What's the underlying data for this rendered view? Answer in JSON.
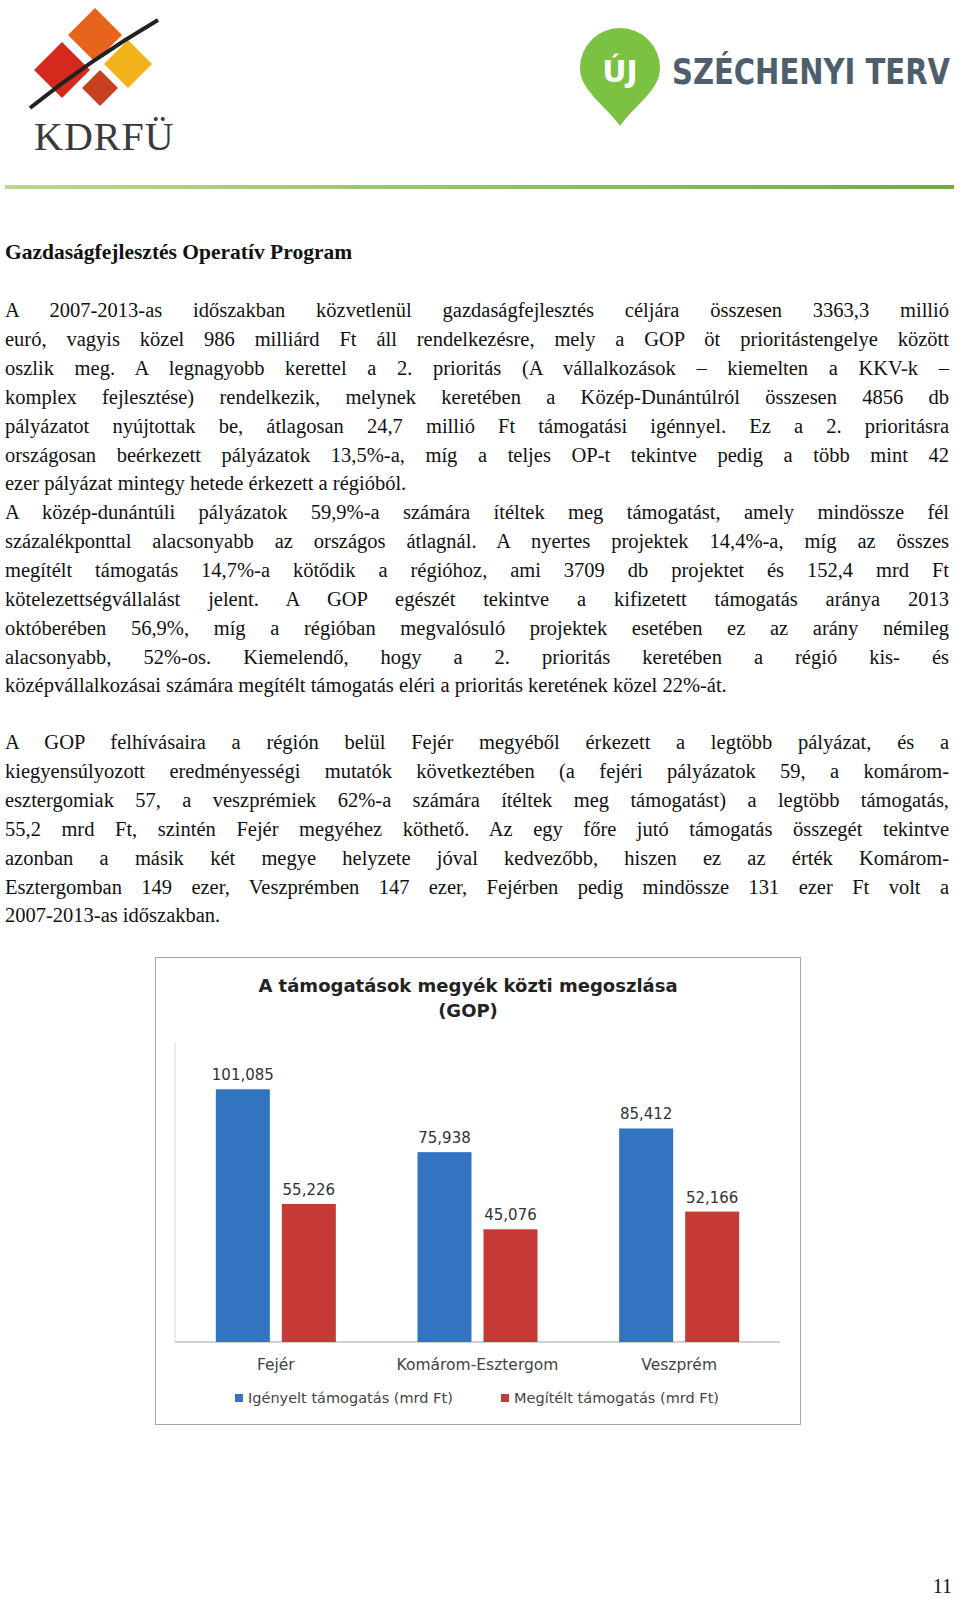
{
  "header": {
    "left_logo": "KDRFÜ",
    "right_logo": {
      "mark": "ÚJ",
      "text": "SZÉCHENYI TERV"
    }
  },
  "title": "Gazdaságfejlesztés Operatív Program",
  "paragraphs": [
    [
      "A 2007-2013-as időszakban közvetlenül gazdaságfejlesztés céljára összesen 3363,3 millió",
      "euró, vagyis közel 986 milliárd Ft áll rendelkezésre, mely a GOP öt prioritástengelye között",
      "oszlik meg. A legnagyobb kerettel a 2. prioritás (A vállalkozások – kiemelten a KKV-k –",
      "komplex fejlesztése) rendelkezik, melynek keretében a Közép-Dunántúlról összesen 4856 db",
      "pályázatot nyújtottak be, átlagosan 24,7 millió Ft támogatási igénnyel. Ez a 2. prioritásra",
      "országosan beérkezett pályázatok 13,5%-a, míg a teljes OP-t tekintve pedig a több mint 42",
      "ezer pályázat mintegy hetede érkezett a régióból."
    ],
    [
      "A közép-dunántúli pályázatok 59,9%-a számára ítéltek meg támogatást, amely mindössze fél",
      "százalékponttal alacsonyabb az országos átlagnál. A nyertes projektek 14,4%-a, míg az összes",
      "megítélt támogatás 14,7%-a kötődik a régióhoz, ami 3709 db projektet és 152,4 mrd Ft",
      "kötelezettségvállalást jelent. A GOP egészét tekintve a kifizetett támogatás aránya 2013",
      "októberében 56,9%, míg a régióban megvalósuló projektek esetében ez az arány némileg",
      "alacsonyabb, 52%-os. Kiemelendő, hogy a 2. prioritás keretében a régió kis- és",
      "középvállalkozásai számára megítélt támogatás eléri a prioritás keretének közel 22%-át."
    ],
    [
      "A GOP felhívásaira a régión belül Fejér megyéből érkezett a legtöbb pályázat, és a",
      "kiegyensúlyozott eredményességi mutatók következtében (a fejéri pályázatok 59, a komárom-",
      "esztergomiak 57, a veszprémiek 62%-a számára ítéltek meg támogatást) a legtöbb támogatás,",
      "55,2 mrd Ft, szintén Fejér megyéhez köthető. Az egy főre jutó támogatás összegét tekintve",
      "azonban a másik két megye helyzete jóval kedvezőbb, hiszen ez az érték Komárom-",
      "Esztergomban 149 ezer, Veszprémben 147 ezer, Fejérben pedig mindössze 131 ezer Ft volt a",
      "2007-2013-as időszakban."
    ]
  ],
  "chart_data": {
    "type": "bar",
    "title": "A támogatások megyék közti megoszlása",
    "subtitle": "(GOP)",
    "categories": [
      "Fejér",
      "Komárom-Esztergom",
      "Veszprém"
    ],
    "series": [
      {
        "name": "Igényelt támogatás (mrd Ft)",
        "color": "#3374c1",
        "values": [
          101.085,
          75.938,
          85.412
        ],
        "value_labels": [
          "101,085",
          "75,938",
          "85,412"
        ]
      },
      {
        "name": "Megítélt támogatás (mrd Ft)",
        "color": "#c53a36",
        "values": [
          55.226,
          45.076,
          52.166
        ],
        "value_labels": [
          "55,226",
          "45,076",
          "52,166"
        ]
      }
    ],
    "ylim": [
      0,
      120
    ],
    "grid": false,
    "legend": "bottom",
    "data_labels": true,
    "tick_labels": "x"
  },
  "page_number": "11"
}
